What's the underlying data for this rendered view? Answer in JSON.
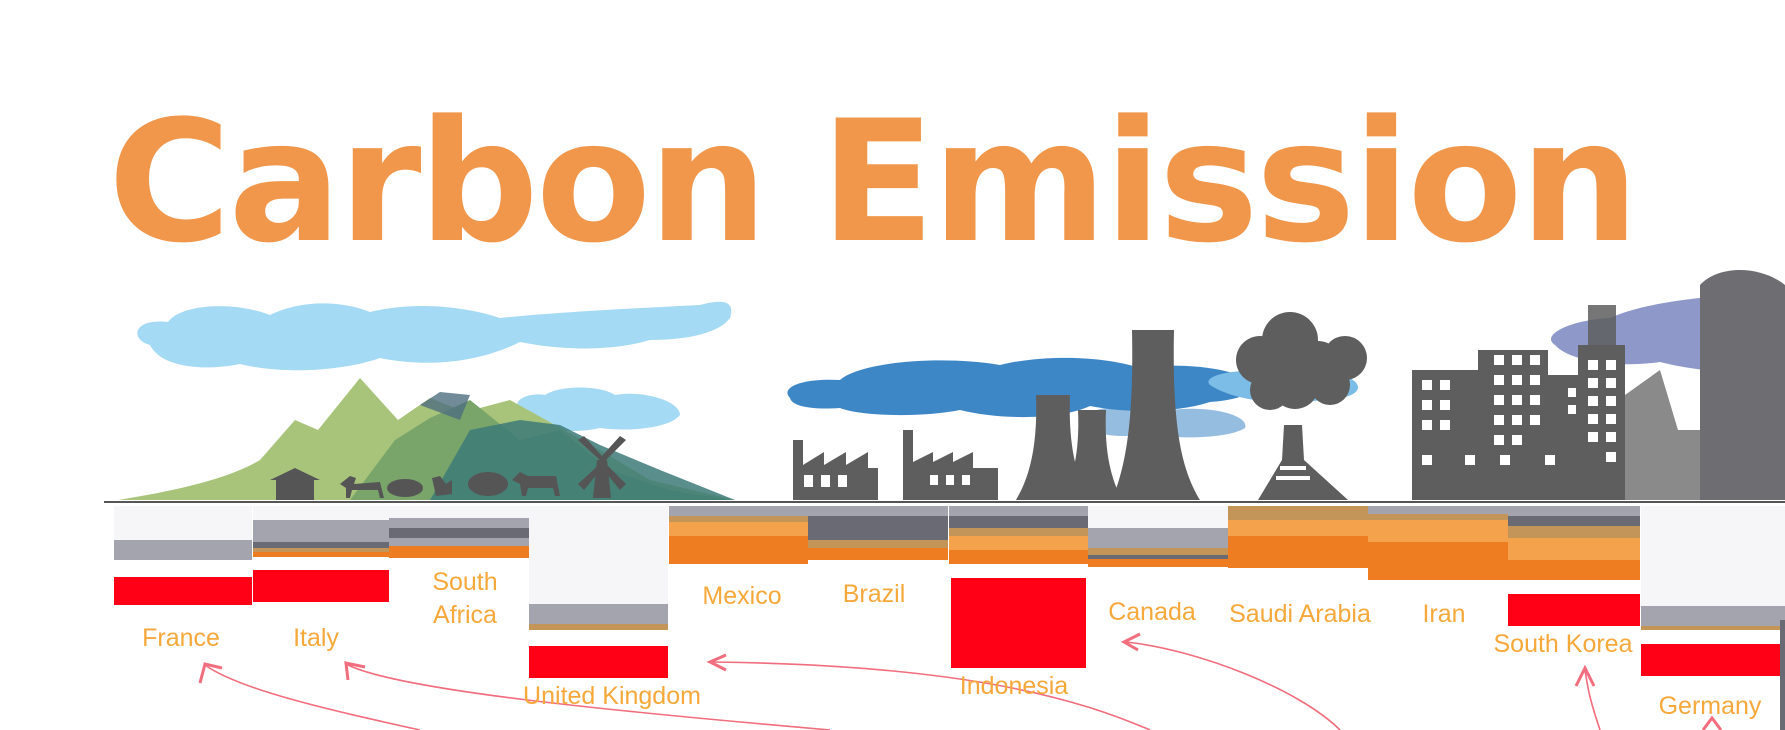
{
  "title": "Carbon Emission",
  "colors": {
    "title": "#f0974b",
    "label": "#f6a83a",
    "grey_layer": "#a4a4ae",
    "dark_layer": "#6a6a74",
    "orange_layer": "#ee7d21",
    "light_orange_layer": "#f4a24b",
    "tan_layer": "#c39558",
    "red_block": "#ff0016",
    "arrow": "#f26d7d",
    "green_sky_cloud": "#a4daf4",
    "industrial_cloud": "#3e87c7",
    "smog_cloud": "#8e98c9",
    "silhouette": "#5e5e5e"
  },
  "icons": [
    "cloud-icon",
    "mountain-icon",
    "hut-icon",
    "horse-icon",
    "pig-icon",
    "hen-icon",
    "sheep-icon",
    "cow-icon",
    "windmill-icon",
    "factory-icon",
    "cooling-tower-icon",
    "chimney-icon",
    "volcano-icon",
    "smoke-icon",
    "building-icon"
  ],
  "countries": [
    {
      "id": "france",
      "label": "France"
    },
    {
      "id": "italy",
      "label": "Italy"
    },
    {
      "id": "south-africa",
      "label": "South Africa",
      "lines": [
        "South",
        "Africa"
      ]
    },
    {
      "id": "united-kingdom",
      "label": "United Kingdom"
    },
    {
      "id": "mexico",
      "label": "Mexico"
    },
    {
      "id": "brazil",
      "label": "Brazil"
    },
    {
      "id": "indonesia",
      "label": "Indonesia"
    },
    {
      "id": "canada",
      "label": "Canada"
    },
    {
      "id": "saudi-arabia",
      "label": "Saudi Arabia"
    },
    {
      "id": "iran",
      "label": "Iran"
    },
    {
      "id": "south-korea",
      "label": "South Korea"
    },
    {
      "id": "germany",
      "label": "Germany"
    }
  ]
}
